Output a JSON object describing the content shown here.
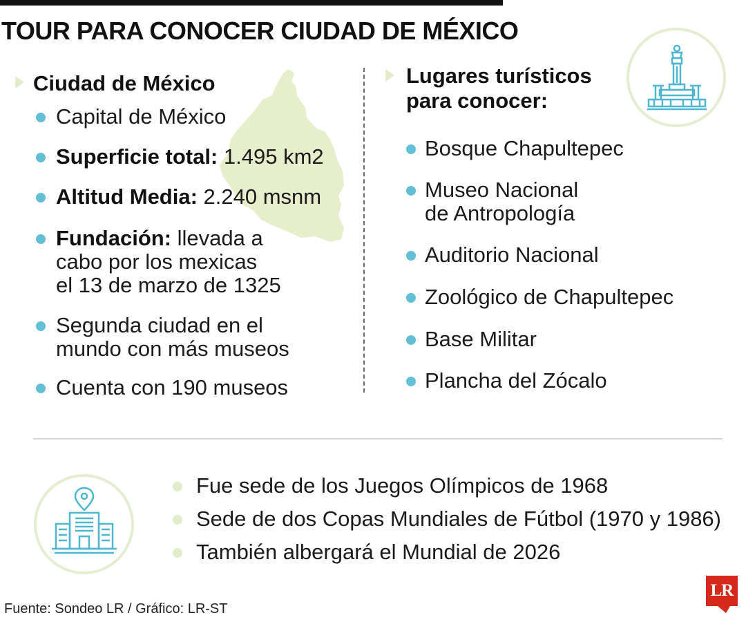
{
  "title": "TOUR PARA CONOCER CIUDAD DE MÉXICO",
  "left_section": {
    "heading": "Ciudad de México",
    "items": [
      {
        "strong": "",
        "text": "Capital de México"
      },
      {
        "strong": "Superficie total:",
        "text": " 1.495 km2"
      },
      {
        "strong": "Altitud Media:",
        "text": " 2.240 msnm"
      },
      {
        "strong": "Fundación:",
        "text": " llevada a\ncabo por los mexicas\nel 13 de marzo de 1325"
      },
      {
        "strong": "",
        "text": "Segunda ciudad en el\nmundo con más museos"
      },
      {
        "strong": "",
        "text": "Cuenta con 190 museos"
      }
    ]
  },
  "right_section": {
    "heading": "Lugares turísticos\npara conocer:",
    "items": [
      "Bosque Chapultepec",
      "Museo Nacional\nde Antropología",
      "Auditorio Nacional",
      "Zoológico de Chapultepec",
      "Base Militar",
      "Plancha del Zócalo"
    ]
  },
  "bottom_section": {
    "items": [
      "Fue sede de los Juegos Olímpicos de 1968",
      "Sede de dos Copas Mundiales de Fútbol (1970 y 1986)",
      "También albergará el Mundial de 2026"
    ]
  },
  "footer": {
    "source": "Fuente: Sondeo LR / Gráfico: LR-ST",
    "logo_text": "LR"
  },
  "colors": {
    "bullet_cyan": "#63bfd6",
    "bullet_green": "#e3ecc9",
    "map_fill": "#e6eecb",
    "icon_line": "#4fb6cf",
    "circle_border": "#e4edcf",
    "logo_red": "#d5291c"
  },
  "icons": {
    "map": "mexico-city-map-icon",
    "monument": "monument-icon",
    "building": "city-building-location-icon"
  }
}
